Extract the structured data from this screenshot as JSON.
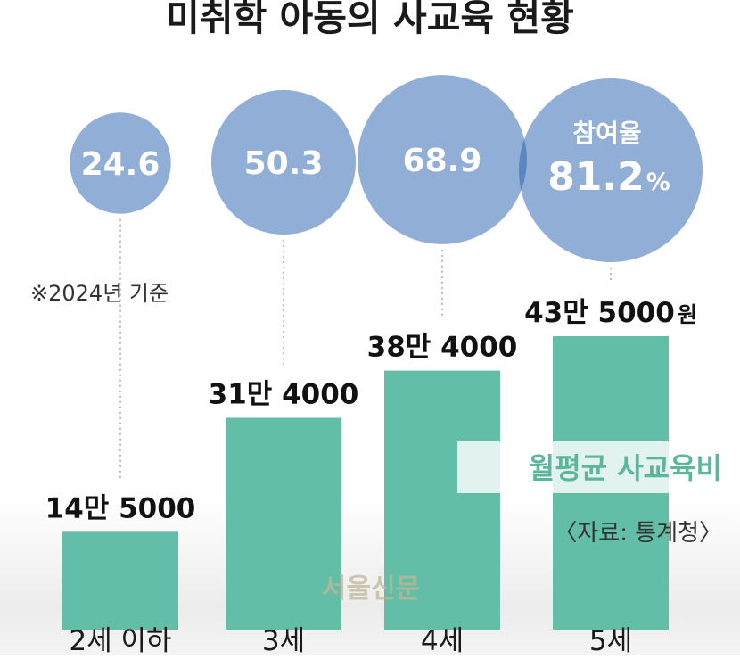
{
  "colors": {
    "circle": "#90aed6",
    "circle_overlap": "#5b86c0",
    "bar": "#62bea6",
    "legend_text": "#5ab79c",
    "leader_line": "#aaaaaa"
  },
  "chart_data": {
    "title": "미취학 아동의 사교육 현황",
    "note": "※2024년 기준",
    "participation": {
      "type": "bubble",
      "label": "참여율",
      "unit": "%",
      "values": [
        24.6,
        50.3,
        68.9,
        81.2
      ],
      "labels": [
        "24.6",
        "50.3",
        "68.9",
        "81.2"
      ]
    },
    "spending": {
      "type": "bar",
      "series_name": "월평균 사교육비",
      "unit": "원",
      "categories": [
        "2세 이하",
        "3세",
        "4세",
        "5세"
      ],
      "values": [
        145000,
        314000,
        384000,
        435000
      ],
      "labels": [
        "14만 5000",
        "31만 4000",
        "38만 4000",
        "43만 5000"
      ],
      "ylim": [
        0,
        435000
      ]
    },
    "source": "〈자료: 통계청〉",
    "watermark": "서울신문"
  }
}
